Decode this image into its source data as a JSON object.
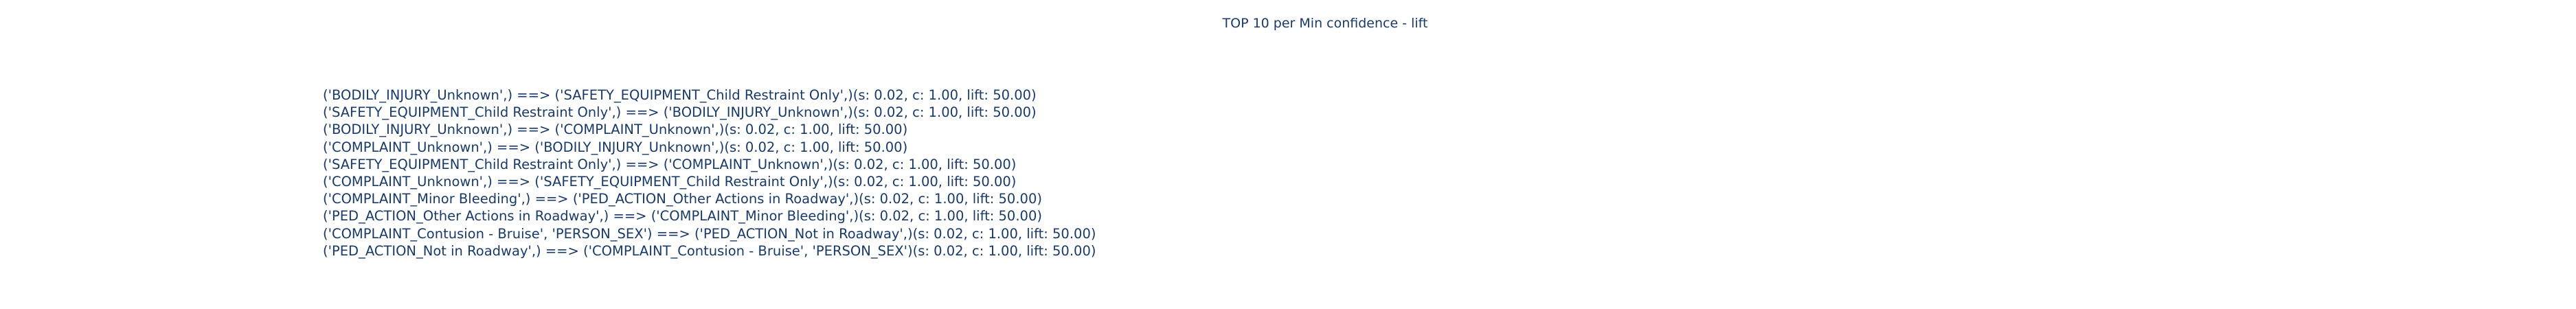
{
  "title": "TOP 10 per Min confidence - lift",
  "rules": [
    "('BODILY_INJURY_Unknown',) ==> ('SAFETY_EQUIPMENT_Child Restraint Only',)(s: 0.02, c: 1.00, lift: 50.00)",
    "('SAFETY_EQUIPMENT_Child Restraint Only',) ==> ('BODILY_INJURY_Unknown',)(s: 0.02, c: 1.00, lift: 50.00)",
    "('BODILY_INJURY_Unknown',) ==> ('COMPLAINT_Unknown',)(s: 0.02, c: 1.00, lift: 50.00)",
    "('COMPLAINT_Unknown',) ==> ('BODILY_INJURY_Unknown',)(s: 0.02, c: 1.00, lift: 50.00)",
    "('SAFETY_EQUIPMENT_Child Restraint Only',) ==> ('COMPLAINT_Unknown',)(s: 0.02, c: 1.00, lift: 50.00)",
    "('COMPLAINT_Unknown',) ==> ('SAFETY_EQUIPMENT_Child Restraint Only',)(s: 0.02, c: 1.00, lift: 50.00)",
    "('COMPLAINT_Minor Bleeding',) ==> ('PED_ACTION_Other Actions in Roadway',)(s: 0.02, c: 1.00, lift: 50.00)",
    "('PED_ACTION_Other Actions in Roadway',) ==> ('COMPLAINT_Minor Bleeding',)(s: 0.02, c: 1.00, lift: 50.00)",
    "('COMPLAINT_Contusion - Bruise', 'PERSON_SEX') ==> ('PED_ACTION_Not in Roadway',)(s: 0.02, c: 1.00, lift: 50.00)",
    "('PED_ACTION_Not in Roadway',) ==> ('COMPLAINT_Contusion - Bruise', 'PERSON_SEX')(s: 0.02, c: 1.00, lift: 50.00)"
  ]
}
